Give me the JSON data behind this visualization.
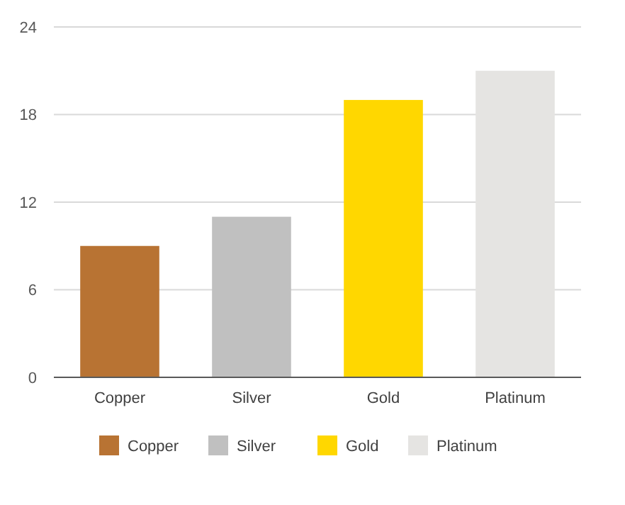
{
  "chart_data": {
    "type": "bar",
    "stacked": true,
    "categories": [
      "Copper",
      "Silver",
      "Gold",
      "Platinum"
    ],
    "series": [
      {
        "name": "Copper",
        "color": "#b87333",
        "values": [
          9,
          null,
          null,
          null
        ]
      },
      {
        "name": "Silver",
        "color": "#c0c0c0",
        "values": [
          null,
          11,
          null,
          null
        ]
      },
      {
        "name": "Gold",
        "color": "#ffd700",
        "values": [
          null,
          null,
          19,
          null
        ]
      },
      {
        "name": "Platinum",
        "color": "#e5e4e2",
        "values": [
          null,
          null,
          null,
          21
        ]
      }
    ],
    "ylim": [
      0,
      24
    ],
    "yticks": [
      0,
      6,
      12,
      18,
      24
    ],
    "grid": "y",
    "legend": "bottom"
  }
}
